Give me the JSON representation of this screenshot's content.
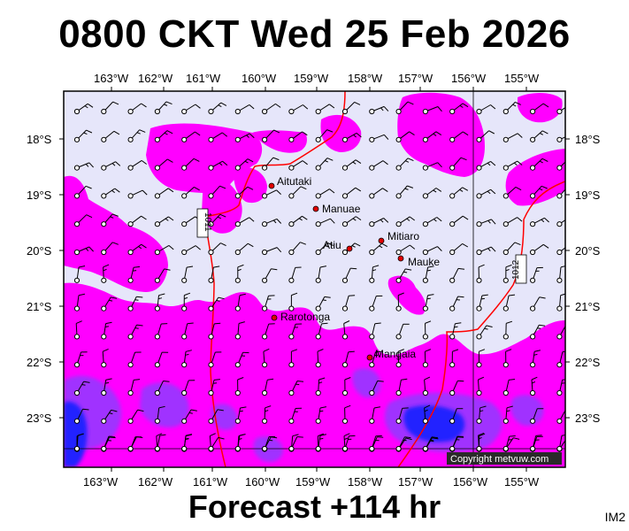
{
  "title": "0800 CKT Wed 25 Feb 2026",
  "subtitle": "Forecast +114 hr",
  "corner_label": "IM2",
  "copyright": "Copyright metvuw.com",
  "longitude_labels": [
    "163°W",
    "162°W",
    "161°W",
    "160°W",
    "159°W",
    "158°W",
    "157°W",
    "156°W",
    "155°W"
  ],
  "latitude_labels": [
    "18°S",
    "19°S",
    "20°S",
    "21°S",
    "22°S",
    "23°S"
  ],
  "places": [
    {
      "name": "Aitutaki"
    },
    {
      "name": "Manuae"
    },
    {
      "name": "Mitiaro"
    },
    {
      "name": "Atiu"
    },
    {
      "name": "Mauke"
    },
    {
      "name": "Rarotonga"
    },
    {
      "name": "Mangaia"
    }
  ],
  "isobars": [
    {
      "label": "1011"
    },
    {
      "label": "1012"
    }
  ],
  "colors": {
    "ocean": "#e6e6fa",
    "rain_magenta": "#ff00ff",
    "rain_purple": "#a030ff",
    "rain_blue": "#2020ff",
    "isobar": "#ff0000",
    "frame": "#000000"
  }
}
